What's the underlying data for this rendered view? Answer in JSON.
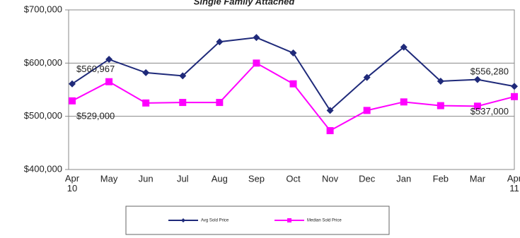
{
  "chart_data": {
    "type": "line",
    "title": "Single Family Attached",
    "categories": [
      "Apr 10",
      "May",
      "Jun",
      "Jul",
      "Aug",
      "Sep",
      "Oct",
      "Nov",
      "Dec",
      "Jan",
      "Feb",
      "Mar",
      "Apr 11"
    ],
    "series": [
      {
        "name": "Avg Sold Price",
        "color": "#1f2a7a",
        "marker": "diamond",
        "values": [
          560967,
          607000,
          582000,
          576000,
          640000,
          648000,
          619000,
          511000,
          573000,
          630000,
          566000,
          569000,
          556280
        ],
        "value_labels": [
          "$560,967",
          null,
          null,
          null,
          null,
          null,
          null,
          null,
          null,
          null,
          null,
          null,
          "$556,280"
        ]
      },
      {
        "name": "Median Sold Price",
        "color": "#ff00ff",
        "marker": "square",
        "values": [
          529000,
          565000,
          525000,
          526000,
          526000,
          600000,
          561000,
          473000,
          511000,
          527000,
          520000,
          519000,
          537000
        ],
        "value_labels": [
          "$529,000",
          null,
          null,
          null,
          null,
          null,
          null,
          null,
          null,
          null,
          null,
          null,
          "$537,000"
        ]
      }
    ],
    "ylim": [
      400000,
      700000
    ],
    "yticks": [
      {
        "value": 400000,
        "label": "$400,000"
      },
      {
        "value": 500000,
        "label": "$500,000"
      },
      {
        "value": 600000,
        "label": "$600,000"
      },
      {
        "value": 700000,
        "label": "$700,000"
      }
    ],
    "grid": true
  }
}
